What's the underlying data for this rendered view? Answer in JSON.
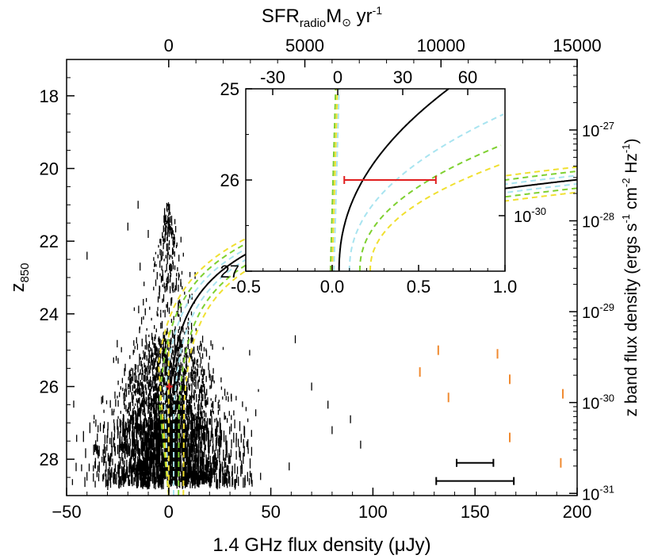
{
  "chart_data": {
    "type": "scatter",
    "main": {
      "xlabel": "1.4 GHz flux density (μJy)",
      "ylabel_main": "z",
      "ylabel_sub": "850",
      "xlim": [
        -50,
        200
      ],
      "ylim": [
        29,
        17
      ],
      "xticks": [
        -50,
        0,
        50,
        100,
        150,
        200
      ],
      "xtick_labels": [
        "−50",
        "0",
        "50",
        "100",
        "150",
        "200"
      ],
      "yticks": [
        18,
        20,
        22,
        24,
        26,
        28
      ],
      "yticks_minor": [
        17.5,
        18.5,
        19,
        19.5,
        20.5,
        21,
        21.5,
        22.5,
        23,
        23.5,
        24.5,
        25,
        25.5,
        26.5,
        27,
        27.5,
        28.5
      ],
      "top_axis": {
        "label_main": "SFR",
        "label_sub": "radio",
        "label_unit": "M",
        "label_sun": "⊙",
        "label_tail": " yr",
        "label_sup": "-1",
        "ticks_sfr": [
          0,
          5000,
          10000,
          15000
        ],
        "tick_labels": [
          "0",
          "5000",
          "10000",
          "15000"
        ],
        "sfr_per_ujy": 75
      },
      "right_axis": {
        "label_main": "z band flux density (ergs s",
        "label_sup1": "-1",
        "label_mid1": " cm",
        "label_sup2": "-2",
        "label_mid2": " Hz",
        "label_sup3": "-1",
        "label_end": ")",
        "ticks": [
          {
            "z": 18.94,
            "exp": "-27"
          },
          {
            "z": 21.44,
            "exp": "-28"
          },
          {
            "z": 23.94,
            "exp": "-29"
          },
          {
            "z": 26.44,
            "exp": "-30"
          },
          {
            "z": 28.94,
            "exp": "-31"
          }
        ],
        "base": "10"
      },
      "stacked_point": {
        "x": 0.3,
        "y": 26.0,
        "color": "#e01e1e"
      },
      "orange_sources": [
        {
          "x": 123,
          "y": 25.6
        },
        {
          "x": 132,
          "y": 25.0
        },
        {
          "x": 137,
          "y": 26.3
        },
        {
          "x": 161,
          "y": 25.1
        },
        {
          "x": 167,
          "y": 25.8
        },
        {
          "x": 167,
          "y": 27.4
        },
        {
          "x": 192,
          "y": 28.1
        },
        {
          "x": 193,
          "y": 26.2
        }
      ],
      "error_bars": [
        {
          "x_low": 141,
          "x_high": 159,
          "y": 28.1
        },
        {
          "x_low": 131,
          "x_high": 169,
          "y": 28.6
        }
      ],
      "color_orange": "#f08a30",
      "color_black": "#000000"
    },
    "inset": {
      "xlim": [
        -0.5,
        1.0
      ],
      "ylim": [
        27.0,
        25.0
      ],
      "xticks": [
        -0.5,
        0.0,
        0.5,
        1.0
      ],
      "xtick_labels": [
        "-0.5",
        "0.0",
        "0.5",
        "1.0"
      ],
      "yticks": [
        25,
        26,
        27
      ],
      "ytick_labels": [
        "25",
        "26",
        "27"
      ],
      "top_ticks": [
        -30,
        0,
        30,
        60
      ],
      "top_tick_labels": [
        "-30",
        "0",
        "30",
        "60"
      ],
      "right_tick_label": "10",
      "right_tick_exp": "-30",
      "red_bar": {
        "x_low": 0.07,
        "x_high": 0.6,
        "y": 26.0,
        "color": "#e01e1e"
      }
    },
    "curves": [
      {
        "name": "solid",
        "color": "#000000",
        "dashed": false,
        "offset": 0.0
      },
      {
        "name": "cyan-1",
        "color": "#a8e4f0",
        "dashed": true,
        "offset": 0.06
      },
      {
        "name": "green-1",
        "color": "#7ed030",
        "dashed": true,
        "offset": 0.12
      },
      {
        "name": "yellow-1",
        "color": "#f0e030",
        "dashed": true,
        "offset": 0.18
      },
      {
        "name": "cyan-2",
        "color": "#a8e4f0",
        "dashed": true,
        "offset": -0.06
      },
      {
        "name": "green-2",
        "color": "#7ed030",
        "dashed": true,
        "offset": -0.12
      },
      {
        "name": "yellow-2",
        "color": "#f0e030",
        "dashed": true,
        "offset": -0.18
      }
    ]
  }
}
